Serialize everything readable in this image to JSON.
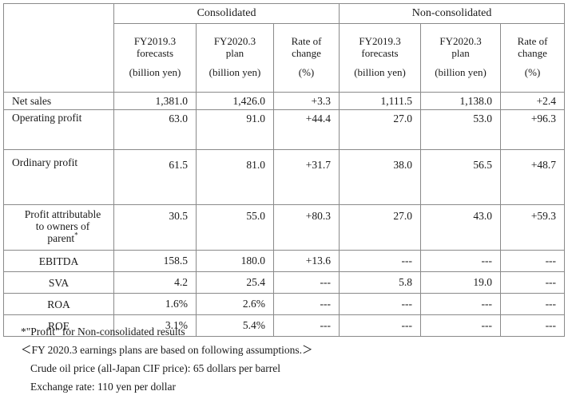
{
  "groups": {
    "consolidated": "Consolidated",
    "non_consolidated": "Non-consolidated"
  },
  "subheaders": {
    "c1": {
      "line1": "FY2019.3",
      "line2": "forecasts",
      "unit": "(billion yen)"
    },
    "c2": {
      "line1": "FY2020.3",
      "line2": "plan",
      "unit": "(billion yen)"
    },
    "c3": {
      "line1": "Rate of",
      "line2": "change",
      "unit": "(%)"
    },
    "n1": {
      "line1": "FY2019.3",
      "line2": "forecasts",
      "unit": "(billion yen)"
    },
    "n2": {
      "line1": "FY2020.3",
      "line2": "plan",
      "unit": "(billion yen)"
    },
    "n3": {
      "line1": "Rate of",
      "line2": "change",
      "unit": "(%)"
    }
  },
  "rows": {
    "net_sales": {
      "label": "Net sales",
      "values": [
        "1,381.0",
        "1,426.0",
        "+3.3",
        "1,111.5",
        "1,138.0",
        "+2.4"
      ]
    },
    "operating_profit": {
      "label": "Operating profit",
      "values": [
        "63.0",
        "91.0",
        "+44.4",
        "27.0",
        "53.0",
        "+96.3"
      ]
    },
    "ordinary_profit": {
      "label": "Ordinary profit",
      "values": [
        "61.5",
        "81.0",
        "+31.7",
        "38.0",
        "56.5",
        "+48.7"
      ]
    },
    "profit_attr": {
      "label1": "Profit attributable",
      "label2": "to owners of",
      "label3": "parent",
      "mark": "*",
      "values": [
        "30.5",
        "55.0",
        "+80.3",
        "27.0",
        "43.0",
        "+59.3"
      ]
    },
    "ebitda": {
      "label": "EBITDA",
      "values": [
        "158.5",
        "180.0",
        "+13.6",
        "---",
        "---",
        "---"
      ]
    },
    "sva": {
      "label": "SVA",
      "values": [
        "4.2",
        "25.4",
        "---",
        "5.8",
        "19.0",
        "---"
      ]
    },
    "roa": {
      "label": "ROA",
      "values": [
        "1.6%",
        "2.6%",
        "---",
        "---",
        "---",
        "---"
      ]
    },
    "roe": {
      "label": "ROE",
      "values": [
        "3.1%",
        "5.4%",
        "---",
        "---",
        "---",
        "---"
      ]
    }
  },
  "notes": {
    "asterisk": "*\"Profit\" for Non-consolidated results",
    "assumptions": "＜FY 2020.3 earnings plans are based on following assumptions.＞",
    "crude_oil": "Crude oil price (all-Japan CIF price): 65 dollars per barrel",
    "exchange": "Exchange rate: 110 yen per dollar"
  }
}
